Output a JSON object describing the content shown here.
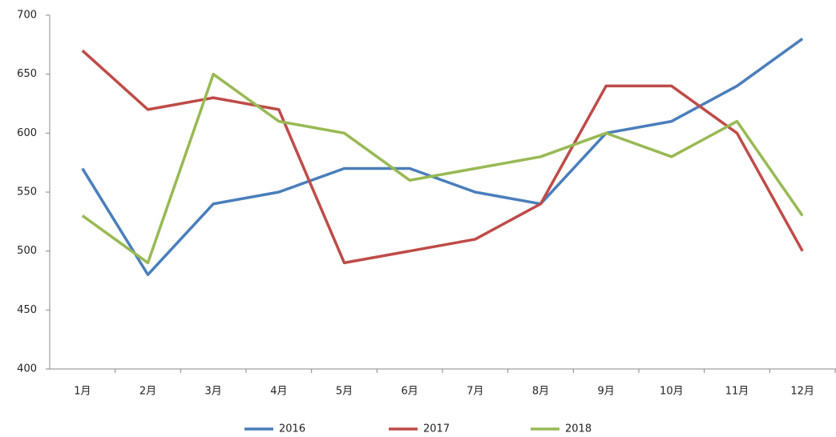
{
  "chart_data": {
    "type": "line",
    "categories": [
      "1月",
      "2月",
      "3月",
      "4月",
      "5月",
      "6月",
      "7月",
      "8月",
      "9月",
      "10月",
      "11月",
      "12月"
    ],
    "series": [
      {
        "name": "2016",
        "color": "#4a7ebb",
        "values": [
          570,
          480,
          540,
          550,
          570,
          570,
          550,
          540,
          600,
          610,
          640,
          680
        ]
      },
      {
        "name": "2017",
        "color": "#be4b48",
        "values": [
          670,
          620,
          630,
          620,
          490,
          500,
          510,
          540,
          640,
          640,
          600,
          500
        ]
      },
      {
        "name": "2018",
        "color": "#98b954",
        "values": [
          530,
          490,
          650,
          610,
          600,
          560,
          570,
          580,
          600,
          580,
          610,
          530
        ]
      }
    ],
    "ylim": [
      400,
      700
    ],
    "yticks": [
      400,
      450,
      500,
      550,
      600,
      650,
      700
    ],
    "grid": false,
    "legend": "bottom"
  }
}
